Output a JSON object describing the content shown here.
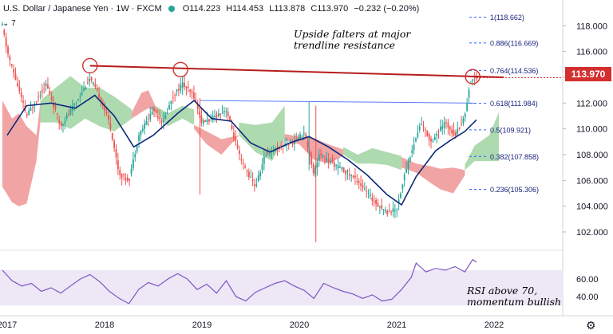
{
  "header": {
    "symbol": "U.S. Dollar / Japanese Yen · 1W · FXCM",
    "open": "O114.223",
    "high": "H114.453",
    "low": "L113.878",
    "close": "C113.970",
    "change": "−0.232 (−0.20%)",
    "indicator_count": "7"
  },
  "annotations": {
    "trend_note_line1": "Upside falters at major",
    "trend_note_line2": "trendline resistance",
    "rsi_note_line1": "RSI above 70,",
    "rsi_note_line2": "momentum bullish"
  },
  "last_price": "113.970",
  "colors": {
    "up": "#26a69a",
    "down": "#ef5350",
    "trendline": "#b71c1c",
    "ma": "#0d2a7a",
    "fib": "#2962ff",
    "cloud_bull": "#a5d6a7",
    "cloud_bear": "#ef9a9a",
    "rsi_line": "#7e57c2",
    "rsi_band": "#ede7f6",
    "price_tag": "#d32f2f"
  },
  "chart_data": {
    "type": "candlestick",
    "timeframe": "1W",
    "x_ticks": [
      "2017",
      "2018",
      "2019",
      "2020",
      "2021",
      "2022"
    ],
    "y_ticks": [
      "118.000",
      "116.000",
      "114.000",
      "112.000",
      "110.000",
      "108.000",
      "106.000",
      "104.000",
      "102.000"
    ],
    "ylim": [
      100.7,
      120.0
    ],
    "rsi_ticks": [
      "60.00",
      "40.00"
    ],
    "rsi_ylim": [
      22,
      88
    ],
    "fib_levels": [
      {
        "label": "1(118.662)",
        "value": 118.662
      },
      {
        "label": "0.886(116.669)",
        "value": 116.669
      },
      {
        "label": "0.764(114.536)",
        "value": 114.536
      },
      {
        "label": "0.618(111.984)",
        "value": 111.984
      },
      {
        "label": "0.5(109.921)",
        "value": 109.921
      },
      {
        "label": "0.382(107.858)",
        "value": 107.858
      },
      {
        "label": "0.236(105.306)",
        "value": 105.306
      }
    ],
    "trendline": {
      "x": [
        2017.85,
        2022.1
      ],
      "y": [
        114.9,
        114.0
      ]
    },
    "horizontal_line": {
      "x": [
        2018.98,
        2021.8
      ],
      "y": [
        112.2,
        112.0
      ]
    },
    "price_path": {
      "t": [
        2016.95,
        2017.0,
        2017.2,
        2017.4,
        2017.55,
        2017.7,
        2017.85,
        2017.95,
        2018.05,
        2018.15,
        2018.25,
        2018.35,
        2018.5,
        2018.6,
        2018.7,
        2018.8,
        2018.92,
        2019.0,
        2019.1,
        2019.25,
        2019.4,
        2019.55,
        2019.65,
        2019.8,
        2019.95,
        2020.05,
        2020.15,
        2020.2,
        2020.3,
        2020.45,
        2020.6,
        2020.75,
        2020.9,
        2021.0,
        2021.1,
        2021.25,
        2021.35,
        2021.5,
        2021.6,
        2021.7,
        2021.75,
        2021.8
      ],
      "y": [
        118.0,
        116.0,
        111.0,
        113.5,
        110.2,
        112.0,
        113.9,
        112.5,
        110.5,
        106.5,
        106.0,
        109.5,
        111.5,
        110.5,
        112.5,
        113.5,
        112.5,
        110.5,
        110.8,
        111.5,
        107.5,
        105.5,
        108.0,
        108.6,
        109.0,
        109.8,
        106.5,
        108.0,
        107.5,
        106.8,
        106.0,
        104.5,
        103.5,
        103.8,
        107.0,
        110.5,
        109.0,
        110.5,
        109.5,
        111.0,
        113.5,
        114.0
      ]
    },
    "ma_path": {
      "t": [
        2017.0,
        2017.2,
        2017.45,
        2017.7,
        2017.9,
        2018.1,
        2018.3,
        2018.5,
        2018.75,
        2018.92,
        2019.1,
        2019.3,
        2019.5,
        2019.7,
        2019.9,
        2020.1,
        2020.3,
        2020.5,
        2020.7,
        2020.9,
        2021.05,
        2021.2,
        2021.4,
        2021.55,
        2021.7,
        2021.82
      ],
      "y": [
        109.5,
        111.8,
        112.0,
        111.6,
        112.6,
        111.0,
        108.6,
        109.5,
        111.2,
        112.2,
        110.8,
        110.6,
        108.9,
        108.2,
        108.9,
        109.4,
        108.6,
        107.6,
        106.4,
        104.9,
        104.1,
        106.3,
        108.3,
        109.1,
        109.8,
        110.7
      ]
    },
    "rsi_path": {
      "t": [
        2016.95,
        2017.05,
        2017.15,
        2017.25,
        2017.35,
        2017.45,
        2017.55,
        2017.65,
        2017.75,
        2017.85,
        2017.95,
        2018.05,
        2018.15,
        2018.25,
        2018.35,
        2018.45,
        2018.55,
        2018.65,
        2018.75,
        2018.85,
        2018.95,
        2019.05,
        2019.15,
        2019.25,
        2019.35,
        2019.45,
        2019.55,
        2019.65,
        2019.75,
        2019.85,
        2019.95,
        2020.05,
        2020.15,
        2020.25,
        2020.35,
        2020.45,
        2020.55,
        2020.65,
        2020.75,
        2020.85,
        2020.95,
        2021.05,
        2021.15,
        2021.2,
        2021.3,
        2021.4,
        2021.5,
        2021.6,
        2021.7,
        2021.78,
        2021.82
      ],
      "y": [
        70,
        58,
        52,
        55,
        46,
        50,
        44,
        52,
        60,
        65,
        57,
        46,
        38,
        32,
        48,
        56,
        52,
        60,
        66,
        60,
        48,
        54,
        44,
        58,
        40,
        35,
        45,
        50,
        55,
        58,
        52,
        47,
        38,
        55,
        50,
        46,
        43,
        38,
        42,
        35,
        37,
        48,
        62,
        78,
        68,
        72,
        70,
        74,
        68,
        82,
        79
      ]
    },
    "cloud": [
      {
        "kind": "bear",
        "top": [
          [
            2016.95,
            112.2
          ],
          [
            2017.05,
            110.8
          ],
          [
            2017.12,
            111.2
          ],
          [
            2017.2,
            110.2
          ],
          [
            2017.3,
            109.5
          ],
          [
            2017.34,
            112.0
          ]
        ],
        "bottom": [
          [
            2016.95,
            105.5
          ],
          [
            2017.05,
            104.3
          ],
          [
            2017.12,
            104.0
          ],
          [
            2017.2,
            104.2
          ],
          [
            2017.3,
            107.5
          ],
          [
            2017.34,
            110.5
          ]
        ]
      },
      {
        "kind": "bull",
        "top": [
          [
            2017.34,
            112.2
          ],
          [
            2017.5,
            113.2
          ],
          [
            2017.65,
            114.1
          ],
          [
            2017.8,
            113.2
          ],
          [
            2017.95,
            113.2
          ],
          [
            2018.1,
            112.5
          ],
          [
            2018.28,
            111.5
          ]
        ],
        "bottom": [
          [
            2017.34,
            110.5
          ],
          [
            2017.5,
            110.5
          ],
          [
            2017.65,
            110.0
          ],
          [
            2017.8,
            110.8
          ],
          [
            2017.95,
            110.2
          ],
          [
            2018.1,
            109.8
          ],
          [
            2018.28,
            110.8
          ]
        ]
      },
      {
        "kind": "bear",
        "top": [
          [
            2018.28,
            111.3
          ],
          [
            2018.38,
            112.8
          ],
          [
            2018.45,
            113.0
          ],
          [
            2018.52,
            111.8
          ]
        ],
        "bottom": [
          [
            2018.28,
            110.8
          ],
          [
            2018.38,
            111.3
          ],
          [
            2018.45,
            111.6
          ],
          [
            2018.52,
            111.4
          ]
        ]
      },
      {
        "kind": "bull",
        "top": [
          [
            2018.52,
            111.8
          ],
          [
            2018.65,
            111.2
          ],
          [
            2018.8,
            111.8
          ],
          [
            2018.92,
            111.5
          ]
        ],
        "bottom": [
          [
            2018.52,
            111.4
          ],
          [
            2018.65,
            110.2
          ],
          [
            2018.8,
            110.8
          ],
          [
            2018.92,
            110.3
          ]
        ]
      },
      {
        "kind": "bear",
        "top": [
          [
            2018.92,
            110.3
          ],
          [
            2019.05,
            109.8
          ],
          [
            2019.2,
            109.2
          ],
          [
            2019.38,
            109.5
          ]
        ],
        "bottom": [
          [
            2018.92,
            110.0
          ],
          [
            2019.05,
            108.8
          ],
          [
            2019.2,
            108.0
          ],
          [
            2019.38,
            109.5
          ]
        ]
      },
      {
        "kind": "bull",
        "top": [
          [
            2019.38,
            110.5
          ],
          [
            2019.55,
            110.3
          ],
          [
            2019.72,
            110.5
          ],
          [
            2019.85,
            111.8
          ]
        ],
        "bottom": [
          [
            2019.38,
            109.5
          ],
          [
            2019.55,
            108.2
          ],
          [
            2019.72,
            107.5
          ],
          [
            2019.85,
            109.3
          ]
        ]
      },
      {
        "kind": "bear",
        "top": [
          [
            2019.85,
            109.6
          ],
          [
            2020.0,
            109.4
          ],
          [
            2020.15,
            109.3
          ],
          [
            2020.3,
            108.8
          ],
          [
            2020.45,
            108.4
          ]
        ],
        "bottom": [
          [
            2019.85,
            109.1
          ],
          [
            2020.0,
            108.8
          ],
          [
            2020.15,
            107.6
          ],
          [
            2020.3,
            107.3
          ],
          [
            2020.45,
            107.9
          ]
        ]
      },
      {
        "kind": "bull",
        "top": [
          [
            2020.45,
            108.6
          ],
          [
            2020.6,
            108.0
          ],
          [
            2020.75,
            108.5
          ],
          [
            2020.9,
            108.2
          ],
          [
            2021.05,
            107.9
          ]
        ],
        "bottom": [
          [
            2020.45,
            108.0
          ],
          [
            2020.6,
            107.3
          ],
          [
            2020.75,
            107.3
          ],
          [
            2020.9,
            107.2
          ],
          [
            2021.05,
            106.8
          ]
        ]
      },
      {
        "kind": "bear",
        "top": [
          [
            2021.05,
            107.8
          ],
          [
            2021.2,
            107.3
          ],
          [
            2021.35,
            107.1
          ],
          [
            2021.45,
            106.9
          ],
          [
            2021.58,
            107.0
          ],
          [
            2021.7,
            106.8
          ]
        ],
        "bottom": [
          [
            2021.05,
            107.0
          ],
          [
            2021.2,
            106.6
          ],
          [
            2021.35,
            105.8
          ],
          [
            2021.45,
            105.3
          ],
          [
            2021.58,
            105.0
          ],
          [
            2021.7,
            106.4
          ]
        ]
      },
      {
        "kind": "bull",
        "top": [
          [
            2021.7,
            107.2
          ],
          [
            2021.8,
            108.7
          ],
          [
            2021.95,
            109.5
          ],
          [
            2022.05,
            111.3
          ]
        ],
        "bottom": [
          [
            2021.7,
            106.8
          ],
          [
            2021.8,
            107.5
          ],
          [
            2021.95,
            107.5
          ],
          [
            2022.05,
            107.5
          ]
        ]
      }
    ]
  }
}
